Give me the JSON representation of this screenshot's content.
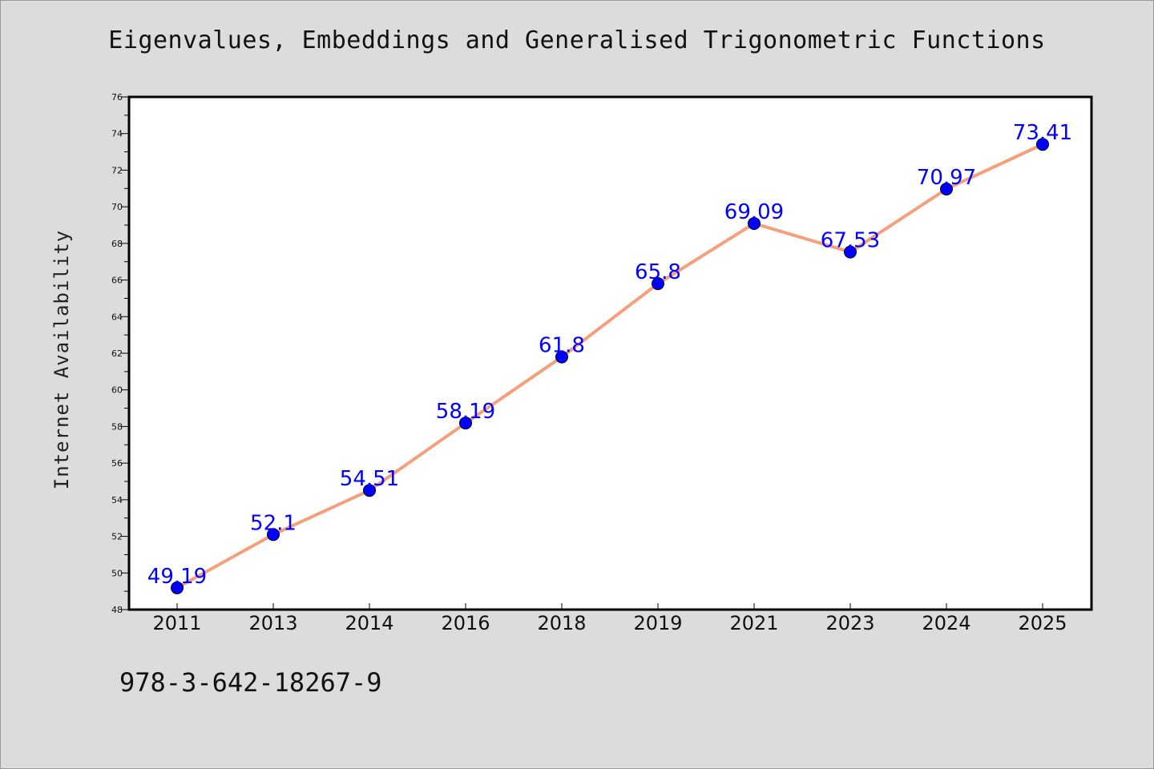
{
  "page": {
    "title": "Eigenvalues, Embeddings and Generalised Trigonometric Functions",
    "footer_text": "978-3-642-18267-9",
    "background_color": "#dcdcdc"
  },
  "chart_data": {
    "type": "line",
    "title": "Eigenvalues, Embeddings and Generalised Trigonometric Functions",
    "xlabel": "",
    "ylabel": "Internet Availability",
    "categories": [
      "2011",
      "2013",
      "2014",
      "2016",
      "2018",
      "2019",
      "2021",
      "2023",
      "2024",
      "2025"
    ],
    "series": [
      {
        "values": [
          49.19,
          52.1,
          54.51,
          58.19,
          61.8,
          65.8,
          69.09,
          67.53,
          70.97,
          73.41
        ],
        "line_color": "#f4a07c",
        "marker_color": "#0000ff"
      }
    ],
    "data_labels": [
      "49.19",
      "52.1",
      "54.51",
      "58.19",
      "61.8",
      "65.8",
      "69.09",
      "67.53",
      "70.97",
      "73.41"
    ],
    "ylim": [
      48,
      76
    ],
    "yticks": [
      48,
      50,
      52,
      54,
      56,
      58,
      60,
      62,
      64,
      66,
      68,
      70,
      72,
      74,
      76
    ],
    "grid": false,
    "legend": "none"
  }
}
